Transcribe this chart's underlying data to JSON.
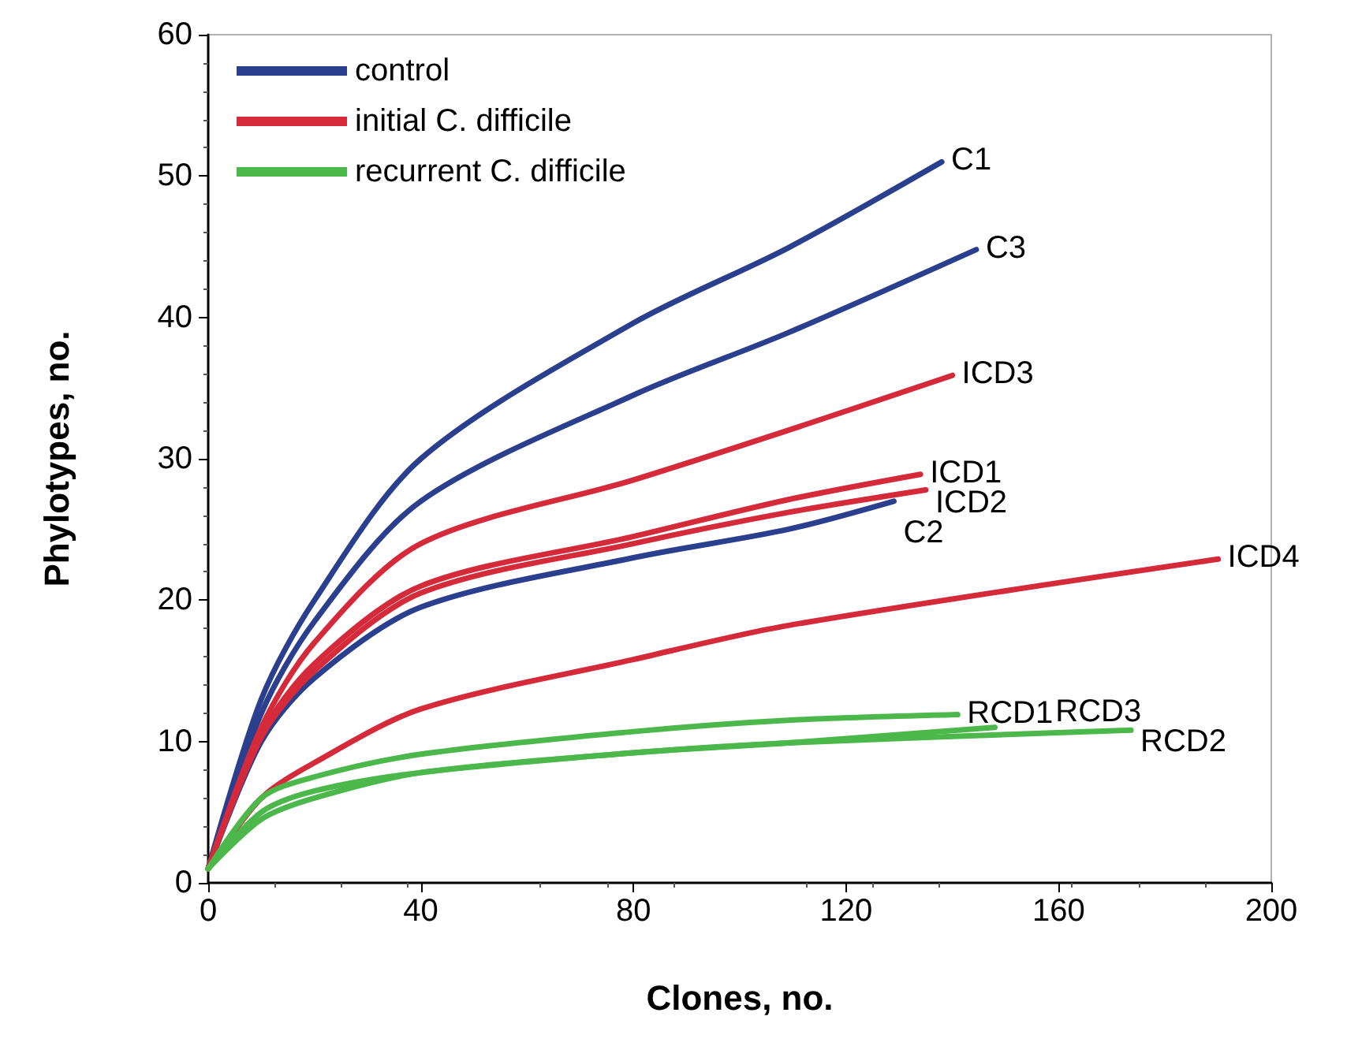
{
  "chart_data": {
    "type": "line",
    "xlabel": "Clones, no.",
    "ylabel": "Phylotypes, no.",
    "xlim": [
      0,
      200
    ],
    "xticks": [
      0,
      40,
      80,
      120,
      160,
      200
    ],
    "ylim": [
      0,
      60
    ],
    "yticks": [
      0,
      10,
      20,
      30,
      40,
      50,
      60
    ],
    "grid": false,
    "legend": "top left",
    "marker": "none",
    "line_style": "solid",
    "series": [
      {
        "name": "control",
        "color": "#2b3f8f",
        "x": [
          0,
          10,
          20,
          40,
          80,
          109,
          138
        ],
        "values": [
          1,
          13,
          20,
          30,
          39.6,
          44.9,
          51
        ]
      },
      {
        "color": "#2b3f8f",
        "x": [
          0,
          10,
          20,
          40,
          80,
          109,
          129
        ],
        "values": [
          1,
          10,
          14.5,
          19.5,
          23,
          25,
          27
        ]
      },
      {
        "color": "#2b3f8f",
        "x": [
          0,
          10,
          20,
          40,
          80,
          109,
          144.5
        ],
        "values": [
          1,
          12,
          18.5,
          27,
          34.5,
          38.9,
          44.8
        ]
      },
      {
        "name": "initial C. difficile",
        "color": "#d42a3a",
        "x": [
          0,
          10,
          20,
          40,
          80,
          109,
          134
        ],
        "values": [
          1,
          10.5,
          15.5,
          21,
          24.5,
          27.1,
          28.9
        ]
      },
      {
        "color": "#d42a3a",
        "x": [
          0,
          10,
          20,
          40,
          80,
          109,
          135
        ],
        "values": [
          1,
          10.3,
          15,
          20.5,
          24,
          26.2,
          27.8
        ]
      },
      {
        "color": "#d42a3a",
        "x": [
          0,
          10,
          20,
          40,
          80,
          109,
          140
        ],
        "values": [
          1,
          11,
          17,
          24,
          28.5,
          32,
          35.9
        ]
      },
      {
        "color": "#d42a3a",
        "x": [
          0,
          10,
          20,
          40,
          80,
          109,
          190
        ],
        "values": [
          1,
          6,
          8.5,
          12.3,
          15.8,
          18.2,
          22.9
        ]
      },
      {
        "name": "recurrent C. difficile",
        "color": "#4cb84c",
        "x": [
          0,
          10,
          20,
          40,
          80,
          109,
          141
        ],
        "values": [
          1,
          6,
          7.5,
          9.1,
          10.7,
          11.5,
          11.9
        ]
      },
      {
        "color": "#4cb84c",
        "x": [
          0,
          10,
          20,
          40,
          80,
          109,
          173.6
        ],
        "values": [
          1,
          4.5,
          6,
          7.8,
          9.2,
          9.9,
          10.8
        ]
      },
      {
        "color": "#4cb84c",
        "x": [
          0,
          10,
          20,
          40,
          80,
          109,
          148
        ],
        "values": [
          1,
          5,
          6.5,
          7.8,
          9.2,
          9.9,
          11
        ]
      }
    ],
    "annotations": [
      {
        "text": "C1",
        "x": 138,
        "y": 51
      },
      {
        "text": "C2",
        "x": 129,
        "y": 27
      },
      {
        "text": "C3",
        "x": 144.5,
        "y": 44.8
      },
      {
        "text": "ICD1",
        "x": 134,
        "y": 28.9
      },
      {
        "text": "ICD2",
        "x": 135,
        "y": 27.8
      },
      {
        "text": "ICD3",
        "x": 140,
        "y": 35.9
      },
      {
        "text": "ICD4",
        "x": 190,
        "y": 22.9
      },
      {
        "text": "RCD1",
        "x": 141,
        "y": 11.9
      },
      {
        "text": "RCD2",
        "x": 173.6,
        "y": 10.8
      },
      {
        "text": "RCD3",
        "x": 148,
        "y": 11
      }
    ]
  }
}
